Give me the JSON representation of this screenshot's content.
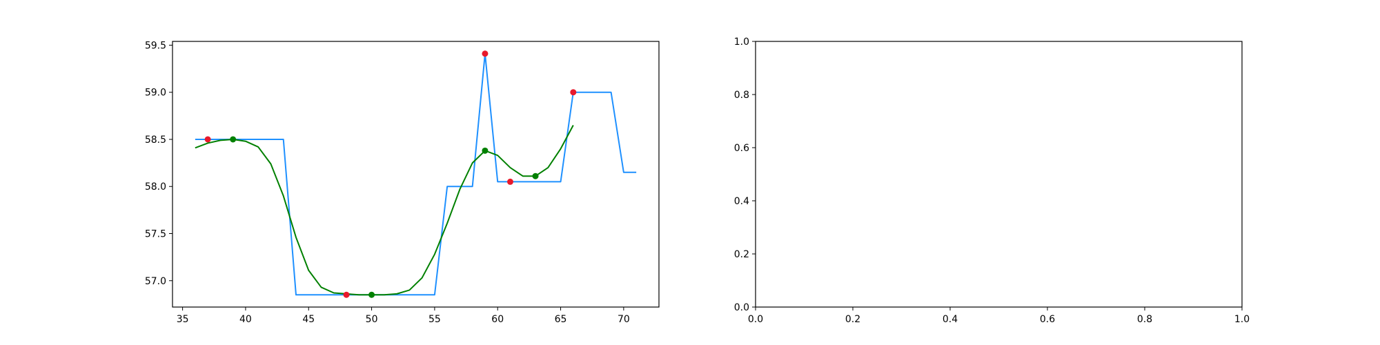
{
  "chart_data": [
    {
      "type": "line",
      "title": "",
      "xlabel": "",
      "ylabel": "",
      "xlim": [
        34.2,
        72.8
      ],
      "ylim": [
        56.72,
        59.54
      ],
      "x_ticks": [
        35,
        40,
        45,
        50,
        55,
        60,
        65,
        70
      ],
      "x_tick_labels": [
        "35",
        "40",
        "45",
        "50",
        "55",
        "60",
        "65",
        "70"
      ],
      "y_ticks": [
        57.0,
        57.5,
        58.0,
        58.5,
        59.0,
        59.5
      ],
      "y_tick_labels": [
        "57.0",
        "57.5",
        "58.0",
        "58.5",
        "59.0",
        "59.5"
      ],
      "grid": false,
      "series": [
        {
          "kind": "step-line",
          "color": "#1e90ff",
          "x": [
            36,
            37,
            38,
            39,
            40,
            41,
            42,
            43,
            44,
            45,
            46,
            47,
            48,
            49,
            50,
            51,
            52,
            53,
            54,
            55,
            56,
            57,
            58,
            59,
            60,
            61,
            62,
            63,
            64,
            65,
            66,
            67,
            68,
            69,
            70,
            71
          ],
          "y": [
            58.5,
            58.5,
            58.5,
            58.5,
            58.5,
            58.5,
            58.5,
            58.5,
            56.85,
            56.85,
            56.85,
            56.85,
            56.85,
            56.85,
            56.85,
            56.85,
            56.85,
            56.85,
            56.85,
            56.85,
            58.0,
            58.0,
            58.0,
            59.41,
            58.05,
            58.05,
            58.05,
            58.05,
            58.05,
            58.05,
            59.0,
            59.0,
            59.0,
            59.0,
            58.15,
            58.15
          ]
        },
        {
          "kind": "smoothed-line",
          "color": "#008000",
          "x": [
            36,
            37,
            38,
            39,
            40,
            41,
            42,
            43,
            44,
            45,
            46,
            47,
            48,
            49,
            50,
            51,
            52,
            53,
            54,
            55,
            56,
            57,
            58,
            59,
            60,
            61,
            62,
            63,
            64,
            65,
            66
          ],
          "y": [
            58.41,
            58.46,
            58.49,
            58.5,
            58.48,
            58.42,
            58.24,
            57.9,
            57.46,
            57.11,
            56.93,
            56.87,
            56.86,
            56.85,
            56.85,
            56.85,
            56.86,
            56.9,
            57.03,
            57.28,
            57.61,
            57.97,
            58.25,
            58.38,
            58.33,
            58.2,
            58.11,
            58.11,
            58.2,
            58.4,
            58.65
          ]
        },
        {
          "kind": "points",
          "color": "#e8192c",
          "x": [
            37,
            48,
            59,
            61,
            66
          ],
          "y": [
            58.5,
            56.85,
            59.41,
            58.05,
            59.0
          ]
        },
        {
          "kind": "points",
          "color": "#008000",
          "x": [
            39,
            50,
            59,
            63
          ],
          "y": [
            58.5,
            56.85,
            58.38,
            58.11
          ]
        }
      ]
    },
    {
      "type": "line",
      "title": "",
      "xlabel": "",
      "ylabel": "",
      "xlim": [
        0.0,
        1.0
      ],
      "ylim": [
        0.0,
        1.0
      ],
      "x_ticks": [
        0.0,
        0.2,
        0.4,
        0.6,
        0.8,
        1.0
      ],
      "x_tick_labels": [
        "0.0",
        "0.2",
        "0.4",
        "0.6",
        "0.8",
        "1.0"
      ],
      "y_ticks": [
        0.0,
        0.2,
        0.4,
        0.6,
        0.8,
        1.0
      ],
      "y_tick_labels": [
        "0.0",
        "0.2",
        "0.4",
        "0.6",
        "0.8",
        "1.0"
      ],
      "grid": false,
      "series": []
    }
  ]
}
